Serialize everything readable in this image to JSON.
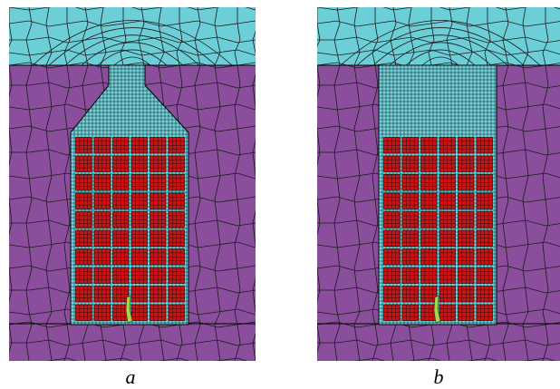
{
  "panels": [
    {
      "id": "a",
      "caption": "a",
      "cavity": "bottle"
    },
    {
      "id": "b",
      "caption": "b",
      "cavity": "rect"
    }
  ],
  "colors": {
    "top_layer": "#6ccfd8",
    "host": "#8a4e9c",
    "cavity": "#6fd3dc",
    "block": "#c81414",
    "mesh_line": "#1b1b1b",
    "defect": "#a8d84a"
  },
  "block_grid": {
    "rows": 10,
    "cols": 6
  }
}
